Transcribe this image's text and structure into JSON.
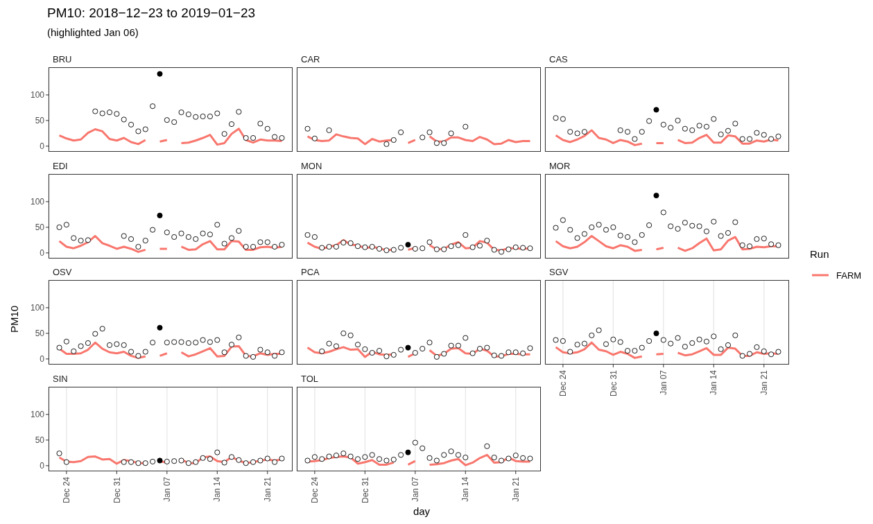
{
  "chart_data": [
    {
      "type": "line",
      "title": "BRU",
      "annotations": [
        "PM10: 2018−12−23 to 2019−01−23",
        "(highlighted Jan 06)"
      ],
      "x": [
        "2018-12-23",
        "2018-12-24",
        "2018-12-25",
        "2018-12-26",
        "2018-12-27",
        "2018-12-28",
        "2018-12-29",
        "2018-12-30",
        "2018-12-31",
        "2019-01-01",
        "2019-01-02",
        "2019-01-03",
        "2019-01-04",
        "2019-01-05",
        "2019-01-06",
        "2019-01-07",
        "2019-01-08",
        "2019-01-09",
        "2019-01-10",
        "2019-01-11",
        "2019-01-12",
        "2019-01-13",
        "2019-01-14",
        "2019-01-15",
        "2019-01-16",
        "2019-01-17",
        "2019-01-18",
        "2019-01-19",
        "2019-01-20",
        "2019-01-21",
        "2019-01-22",
        "2019-01-23"
      ],
      "xlim": [
        "2018-12-21T12:00",
        "2019-01-24T12:00"
      ],
      "xticks": [
        "2018-12-24",
        "2018-12-31",
        "2019-01-07",
        "2019-01-14",
        "2019-01-21"
      ],
      "ylim": [
        -11,
        154
      ],
      "yticks": [
        0,
        50,
        100
      ],
      "grid": "x",
      "tick_labels": "y",
      "series": [
        {
          "type": "line",
          "color": "#f8766d",
          "values": [
            21,
            15,
            11,
            13,
            26,
            33,
            29,
            14,
            11,
            16,
            8,
            4,
            12,
            null,
            9,
            12,
            null,
            6,
            7,
            11,
            16,
            22,
            3,
            6,
            24,
            34,
            12,
            7,
            13,
            11,
            11,
            10
          ]
        },
        {
          "type": "scatter",
          "color": "#000000",
          "marker": "circle",
          "colors": [
            null,
            null,
            null,
            null,
            null,
            "#ffffff",
            "#ffffff",
            "#ffffff",
            "#ffffff",
            "#ffffff",
            "#ffffff",
            "#ffffff",
            "#ffffff",
            "#ffffff",
            "#000000",
            "#ffffff",
            "#ffffff",
            "#ffffff",
            "#ffffff",
            "#ffffff",
            "#ffffff",
            "#ffffff",
            "#ffffff",
            "#ffffff",
            "#ffffff",
            "#ffffff",
            "#ffffff",
            "#ffffff",
            "#ffffff",
            "#ffffff",
            "#ffffff",
            "#ffffff"
          ],
          "values": [
            null,
            null,
            null,
            null,
            null,
            68,
            64,
            66,
            63,
            52,
            42,
            29,
            33,
            78,
            141,
            51,
            47,
            66,
            62,
            57,
            58,
            58,
            64,
            24,
            43,
            67,
            16,
            16,
            44,
            34,
            18,
            16
          ]
        }
      ]
    },
    {
      "type": "line",
      "title": "CAR",
      "x": [
        "2018-12-23",
        "2018-12-24",
        "2018-12-25",
        "2018-12-26",
        "2018-12-27",
        "2018-12-28",
        "2018-12-29",
        "2018-12-30",
        "2018-12-31",
        "2019-01-01",
        "2019-01-02",
        "2019-01-03",
        "2019-01-04",
        "2019-01-05",
        "2019-01-06",
        "2019-01-07",
        "2019-01-08",
        "2019-01-09",
        "2019-01-10",
        "2019-01-11",
        "2019-01-12",
        "2019-01-13",
        "2019-01-14",
        "2019-01-15",
        "2019-01-16",
        "2019-01-17",
        "2019-01-18",
        "2019-01-19",
        "2019-01-20",
        "2019-01-21",
        "2019-01-22",
        "2019-01-23"
      ],
      "xlim": [
        "2018-12-21T12:00",
        "2019-01-24T12:00"
      ],
      "xticks": [
        "2018-12-24",
        "2018-12-31",
        "2019-01-07",
        "2019-01-14",
        "2019-01-21"
      ],
      "ylim": [
        -11,
        154
      ],
      "yticks": [
        0,
        50,
        100
      ],
      "grid": "x",
      "tick_labels": false,
      "series": [
        {
          "type": "line",
          "color": "#f8766d",
          "values": [
            19,
            12,
            10,
            11,
            23,
            19,
            16,
            15,
            4,
            14,
            9,
            11,
            12,
            null,
            6,
            12,
            null,
            19,
            9,
            9,
            17,
            17,
            12,
            10,
            18,
            13,
            4,
            5,
            12,
            8,
            10,
            10
          ]
        },
        {
          "type": "scatter",
          "color": "#000000",
          "marker": "circle",
          "colors": [
            "#ffffff",
            "#ffffff",
            null,
            "#ffffff",
            null,
            null,
            null,
            null,
            null,
            null,
            null,
            "#ffffff",
            "#ffffff",
            "#ffffff",
            null,
            null,
            "#ffffff",
            "#ffffff",
            "#ffffff",
            "#ffffff",
            "#ffffff",
            null,
            "#ffffff",
            null,
            null,
            null,
            null,
            null,
            null,
            null,
            null,
            null
          ],
          "values": [
            34,
            15,
            null,
            31,
            null,
            null,
            null,
            null,
            null,
            null,
            null,
            4,
            12,
            27,
            null,
            null,
            17,
            27,
            6,
            6,
            25,
            null,
            38,
            null,
            null,
            null,
            null,
            null,
            null,
            null,
            null,
            null
          ]
        }
      ]
    },
    {
      "type": "line",
      "title": "CAS",
      "x": [
        "2018-12-23",
        "2018-12-24",
        "2018-12-25",
        "2018-12-26",
        "2018-12-27",
        "2018-12-28",
        "2018-12-29",
        "2018-12-30",
        "2018-12-31",
        "2019-01-01",
        "2019-01-02",
        "2019-01-03",
        "2019-01-04",
        "2019-01-05",
        "2019-01-06",
        "2019-01-07",
        "2019-01-08",
        "2019-01-09",
        "2019-01-10",
        "2019-01-11",
        "2019-01-12",
        "2019-01-13",
        "2019-01-14",
        "2019-01-15",
        "2019-01-16",
        "2019-01-17",
        "2019-01-18",
        "2019-01-19",
        "2019-01-20",
        "2019-01-21",
        "2019-01-22",
        "2019-01-23"
      ],
      "xlim": [
        "2018-12-21T12:00",
        "2019-01-24T12:00"
      ],
      "xticks": [
        "2018-12-24",
        "2018-12-31",
        "2019-01-07",
        "2019-01-14",
        "2019-01-21"
      ],
      "ylim": [
        -11,
        154
      ],
      "yticks": [
        0,
        50,
        100
      ],
      "grid": "x",
      "tick_labels": false,
      "series": [
        {
          "type": "line",
          "color": "#f8766d",
          "values": [
            21,
            12,
            8,
            13,
            20,
            31,
            16,
            13,
            6,
            12,
            9,
            2,
            5,
            null,
            6,
            6,
            null,
            12,
            6,
            7,
            16,
            22,
            7,
            7,
            21,
            19,
            5,
            5,
            11,
            9,
            13,
            11
          ]
        },
        {
          "type": "scatter",
          "color": "#000000",
          "marker": "circle",
          "colors": [
            "#ffffff",
            "#ffffff",
            "#ffffff",
            "#ffffff",
            "#ffffff",
            null,
            null,
            null,
            null,
            "#ffffff",
            "#ffffff",
            "#ffffff",
            "#ffffff",
            "#ffffff",
            "#000000",
            "#ffffff",
            "#ffffff",
            "#ffffff",
            "#ffffff",
            "#ffffff",
            "#ffffff",
            "#ffffff",
            "#ffffff",
            "#ffffff",
            "#ffffff",
            "#ffffff",
            "#ffffff",
            "#ffffff",
            "#ffffff",
            "#ffffff",
            "#ffffff",
            "#ffffff"
          ],
          "values": [
            55,
            53,
            28,
            25,
            28,
            null,
            null,
            null,
            null,
            31,
            28,
            14,
            28,
            49,
            71,
            42,
            36,
            50,
            34,
            31,
            40,
            38,
            53,
            23,
            30,
            44,
            14,
            14,
            26,
            22,
            14,
            19
          ]
        }
      ]
    },
    {
      "type": "line",
      "title": "EDI",
      "x": [
        "2018-12-23",
        "2018-12-24",
        "2018-12-25",
        "2018-12-26",
        "2018-12-27",
        "2018-12-28",
        "2018-12-29",
        "2018-12-30",
        "2018-12-31",
        "2019-01-01",
        "2019-01-02",
        "2019-01-03",
        "2019-01-04",
        "2019-01-05",
        "2019-01-06",
        "2019-01-07",
        "2019-01-08",
        "2019-01-09",
        "2019-01-10",
        "2019-01-11",
        "2019-01-12",
        "2019-01-13",
        "2019-01-14",
        "2019-01-15",
        "2019-01-16",
        "2019-01-17",
        "2019-01-18",
        "2019-01-19",
        "2019-01-20",
        "2019-01-21",
        "2019-01-22",
        "2019-01-23"
      ],
      "xlim": [
        "2018-12-21T12:00",
        "2019-01-24T12:00"
      ],
      "xticks": [
        "2018-12-24",
        "2018-12-31",
        "2019-01-07",
        "2019-01-14",
        "2019-01-21"
      ],
      "ylim": [
        -11,
        154
      ],
      "yticks": [
        0,
        50,
        100
      ],
      "grid": "x",
      "tick_labels": "y",
      "series": [
        {
          "type": "line",
          "color": "#f8766d",
          "values": [
            23,
            12,
            9,
            14,
            21,
            33,
            19,
            14,
            8,
            12,
            8,
            2,
            6,
            null,
            8,
            8,
            null,
            12,
            6,
            7,
            17,
            23,
            7,
            7,
            23,
            22,
            6,
            6,
            11,
            12,
            10,
            12
          ]
        },
        {
          "type": "scatter",
          "color": "#000000",
          "marker": "circle",
          "colors": [
            "#ffffff",
            "#ffffff",
            "#ffffff",
            "#ffffff",
            "#ffffff",
            null,
            null,
            null,
            null,
            "#ffffff",
            "#ffffff",
            "#ffffff",
            "#ffffff",
            "#ffffff",
            "#000000",
            "#ffffff",
            "#ffffff",
            "#ffffff",
            "#ffffff",
            "#ffffff",
            "#ffffff",
            "#ffffff",
            "#ffffff",
            "#ffffff",
            "#ffffff",
            "#ffffff",
            "#ffffff",
            "#ffffff",
            "#ffffff",
            "#ffffff",
            "#ffffff",
            "#ffffff"
          ],
          "values": [
            50,
            55,
            29,
            24,
            25,
            null,
            null,
            null,
            null,
            33,
            27,
            12,
            24,
            45,
            73,
            40,
            31,
            38,
            31,
            27,
            38,
            36,
            55,
            18,
            29,
            43,
            12,
            12,
            21,
            21,
            12,
            16
          ]
        }
      ]
    },
    {
      "type": "line",
      "title": "MON",
      "x": [
        "2018-12-23",
        "2018-12-24",
        "2018-12-25",
        "2018-12-26",
        "2018-12-27",
        "2018-12-28",
        "2018-12-29",
        "2018-12-30",
        "2018-12-31",
        "2019-01-01",
        "2019-01-02",
        "2019-01-03",
        "2019-01-04",
        "2019-01-05",
        "2019-01-06",
        "2019-01-07",
        "2019-01-08",
        "2019-01-09",
        "2019-01-10",
        "2019-01-11",
        "2019-01-12",
        "2019-01-13",
        "2019-01-14",
        "2019-01-15",
        "2019-01-16",
        "2019-01-17",
        "2019-01-18",
        "2019-01-19",
        "2019-01-20",
        "2019-01-21",
        "2019-01-22",
        "2019-01-23"
      ],
      "xlim": [
        "2018-12-21T12:00",
        "2019-01-24T12:00"
      ],
      "xticks": [
        "2018-12-24",
        "2018-12-31",
        "2019-01-07",
        "2019-01-14",
        "2019-01-21"
      ],
      "ylim": [
        -11,
        154
      ],
      "yticks": [
        0,
        50,
        100
      ],
      "grid": "x",
      "tick_labels": false,
      "series": [
        {
          "type": "line",
          "color": "#f8766d",
          "values": [
            20,
            12,
            8,
            12,
            15,
            25,
            16,
            15,
            9,
            12,
            9,
            5,
            7,
            null,
            6,
            10,
            null,
            15,
            7,
            8,
            16,
            21,
            9,
            10,
            23,
            20,
            6,
            5,
            9,
            9,
            8,
            9
          ]
        },
        {
          "type": "scatter",
          "color": "#000000",
          "marker": "circle",
          "colors": [
            "#ffffff",
            "#ffffff",
            "#ffffff",
            "#ffffff",
            "#ffffff",
            "#ffffff",
            "#ffffff",
            "#ffffff",
            "#ffffff",
            "#ffffff",
            "#ffffff",
            "#ffffff",
            "#ffffff",
            "#ffffff",
            "#000000",
            "#ffffff",
            "#ffffff",
            "#ffffff",
            "#ffffff",
            "#ffffff",
            "#ffffff",
            "#ffffff",
            "#ffffff",
            "#ffffff",
            "#ffffff",
            "#ffffff",
            "#ffffff",
            "#ffffff",
            "#ffffff",
            "#ffffff",
            "#ffffff",
            "#ffffff"
          ],
          "values": [
            35,
            31,
            10,
            12,
            12,
            20,
            19,
            13,
            11,
            12,
            8,
            5,
            6,
            10,
            16,
            8,
            9,
            21,
            7,
            7,
            13,
            15,
            35,
            11,
            14,
            24,
            6,
            2,
            7,
            11,
            10,
            9
          ]
        }
      ]
    },
    {
      "type": "line",
      "title": "MOR",
      "legend": "right",
      "legend_title": "Run",
      "x": [
        "2018-12-23",
        "2018-12-24",
        "2018-12-25",
        "2018-12-26",
        "2018-12-27",
        "2018-12-28",
        "2018-12-29",
        "2018-12-30",
        "2018-12-31",
        "2019-01-01",
        "2019-01-02",
        "2019-01-03",
        "2019-01-04",
        "2019-01-05",
        "2019-01-06",
        "2019-01-07",
        "2019-01-08",
        "2019-01-09",
        "2019-01-10",
        "2019-01-11",
        "2019-01-12",
        "2019-01-13",
        "2019-01-14",
        "2019-01-15",
        "2019-01-16",
        "2019-01-17",
        "2019-01-18",
        "2019-01-19",
        "2019-01-20",
        "2019-01-21",
        "2019-01-22",
        "2019-01-23"
      ],
      "xlim": [
        "2018-12-21T12:00",
        "2019-01-24T12:00"
      ],
      "xticks": [
        "2018-12-24",
        "2018-12-31",
        "2019-01-07",
        "2019-01-14",
        "2019-01-21"
      ],
      "ylim": [
        -11,
        154
      ],
      "yticks": [
        0,
        50,
        100
      ],
      "grid": "x",
      "tick_labels": false,
      "series": [
        {
          "type": "line",
          "name": "FARM",
          "color": "#f8766d",
          "values": [
            23,
            13,
            9,
            12,
            21,
            33,
            23,
            13,
            9,
            15,
            12,
            4,
            6,
            null,
            7,
            10,
            null,
            10,
            4,
            9,
            19,
            28,
            5,
            7,
            24,
            31,
            7,
            8,
            12,
            11,
            13,
            13
          ]
        },
        {
          "type": "scatter",
          "color": "#000000",
          "marker": "circle",
          "colors": [
            "#ffffff",
            "#ffffff",
            "#ffffff",
            "#ffffff",
            "#ffffff",
            "#ffffff",
            "#ffffff",
            "#ffffff",
            "#ffffff",
            "#ffffff",
            "#ffffff",
            "#ffffff",
            "#ffffff",
            "#ffffff",
            "#000000",
            "#ffffff",
            "#ffffff",
            "#ffffff",
            "#ffffff",
            "#ffffff",
            "#ffffff",
            "#ffffff",
            "#ffffff",
            "#ffffff",
            "#ffffff",
            "#ffffff",
            "#ffffff",
            "#ffffff",
            "#ffffff",
            "#ffffff",
            "#ffffff",
            "#ffffff"
          ],
          "values": [
            49,
            64,
            45,
            29,
            37,
            50,
            55,
            45,
            50,
            34,
            31,
            21,
            35,
            54,
            112,
            79,
            52,
            47,
            59,
            53,
            52,
            42,
            61,
            33,
            39,
            60,
            15,
            13,
            27,
            28,
            17,
            15
          ]
        }
      ]
    },
    {
      "type": "line",
      "title": "OSV",
      "ylabel": "PM10",
      "x": [
        "2018-12-23",
        "2018-12-24",
        "2018-12-25",
        "2018-12-26",
        "2018-12-27",
        "2018-12-28",
        "2018-12-29",
        "2018-12-30",
        "2018-12-31",
        "2019-01-01",
        "2019-01-02",
        "2019-01-03",
        "2019-01-04",
        "2019-01-05",
        "2019-01-06",
        "2019-01-07",
        "2019-01-08",
        "2019-01-09",
        "2019-01-10",
        "2019-01-11",
        "2019-01-12",
        "2019-01-13",
        "2019-01-14",
        "2019-01-15",
        "2019-01-16",
        "2019-01-17",
        "2019-01-18",
        "2019-01-19",
        "2019-01-20",
        "2019-01-21",
        "2019-01-22",
        "2019-01-23"
      ],
      "xlim": [
        "2018-12-21T12:00",
        "2019-01-24T12:00"
      ],
      "xticks": [
        "2018-12-24",
        "2018-12-31",
        "2019-01-07",
        "2019-01-14",
        "2019-01-21"
      ],
      "ylim": [
        -11,
        154
      ],
      "yticks": [
        0,
        50,
        100
      ],
      "grid": "x",
      "tick_labels": "y",
      "series": [
        {
          "type": "line",
          "color": "#f8766d",
          "values": [
            20,
            10,
            10,
            11,
            18,
            32,
            20,
            13,
            11,
            14,
            6,
            2,
            5,
            null,
            6,
            11,
            null,
            13,
            5,
            9,
            15,
            21,
            5,
            6,
            24,
            25,
            6,
            5,
            11,
            8,
            10,
            10
          ]
        },
        {
          "type": "scatter",
          "color": "#000000",
          "marker": "circle",
          "colors": [
            "#ffffff",
            "#ffffff",
            "#ffffff",
            "#ffffff",
            "#ffffff",
            "#ffffff",
            "#ffffff",
            "#ffffff",
            "#ffffff",
            "#ffffff",
            "#ffffff",
            "#ffffff",
            "#ffffff",
            "#ffffff",
            "#000000",
            "#ffffff",
            "#ffffff",
            "#ffffff",
            "#ffffff",
            "#ffffff",
            "#ffffff",
            "#ffffff",
            "#ffffff",
            "#ffffff",
            "#ffffff",
            "#ffffff",
            "#ffffff",
            "#ffffff",
            "#ffffff",
            "#ffffff",
            "#ffffff",
            "#ffffff"
          ],
          "values": [
            22,
            34,
            15,
            25,
            31,
            49,
            59,
            27,
            29,
            27,
            14,
            6,
            14,
            32,
            61,
            32,
            33,
            33,
            31,
            32,
            37,
            33,
            37,
            13,
            28,
            42,
            6,
            4,
            18,
            13,
            6,
            13
          ]
        }
      ]
    },
    {
      "type": "line",
      "title": "PCA",
      "x": [
        "2018-12-23",
        "2018-12-24",
        "2018-12-25",
        "2018-12-26",
        "2018-12-27",
        "2018-12-28",
        "2018-12-29",
        "2018-12-30",
        "2018-12-31",
        "2019-01-01",
        "2019-01-02",
        "2019-01-03",
        "2019-01-04",
        "2019-01-05",
        "2019-01-06",
        "2019-01-07",
        "2019-01-08",
        "2019-01-09",
        "2019-01-10",
        "2019-01-11",
        "2019-01-12",
        "2019-01-13",
        "2019-01-14",
        "2019-01-15",
        "2019-01-16",
        "2019-01-17",
        "2019-01-18",
        "2019-01-19",
        "2019-01-20",
        "2019-01-21",
        "2019-01-22",
        "2019-01-23"
      ],
      "xlim": [
        "2018-12-21T12:00",
        "2019-01-24T12:00"
      ],
      "xticks": [
        "2018-12-24",
        "2018-12-31",
        "2019-01-07",
        "2019-01-14",
        "2019-01-21"
      ],
      "ylim": [
        -11,
        154
      ],
      "yticks": [
        0,
        50,
        100
      ],
      "grid": "x",
      "tick_labels": false,
      "series": [
        {
          "type": "line",
          "color": "#f8766d",
          "values": [
            22,
            13,
            11,
            14,
            19,
            23,
            18,
            19,
            4,
            14,
            9,
            8,
            9,
            null,
            4,
            11,
            null,
            17,
            6,
            10,
            20,
            21,
            11,
            10,
            20,
            16,
            5,
            5,
            10,
            10,
            9,
            9
          ]
        },
        {
          "type": "scatter",
          "color": "#000000",
          "marker": "circle",
          "colors": [
            null,
            null,
            "#ffffff",
            "#ffffff",
            "#ffffff",
            "#ffffff",
            "#ffffff",
            "#ffffff",
            "#ffffff",
            "#ffffff",
            "#ffffff",
            "#ffffff",
            "#ffffff",
            "#ffffff",
            "#000000",
            "#ffffff",
            "#ffffff",
            "#ffffff",
            "#ffffff",
            "#ffffff",
            "#ffffff",
            "#ffffff",
            "#ffffff",
            "#ffffff",
            "#ffffff",
            "#ffffff",
            "#ffffff",
            "#ffffff",
            "#ffffff",
            "#ffffff",
            "#ffffff",
            "#ffffff"
          ],
          "values": [
            null,
            null,
            15,
            30,
            25,
            50,
            46,
            28,
            19,
            12,
            16,
            5,
            8,
            18,
            22,
            12,
            20,
            32,
            4,
            10,
            26,
            26,
            41,
            11,
            20,
            22,
            7,
            6,
            13,
            13,
            11,
            21
          ]
        }
      ]
    },
    {
      "type": "line",
      "title": "SGV",
      "x": [
        "2018-12-23",
        "2018-12-24",
        "2018-12-25",
        "2018-12-26",
        "2018-12-27",
        "2018-12-28",
        "2018-12-29",
        "2018-12-30",
        "2018-12-31",
        "2019-01-01",
        "2019-01-02",
        "2019-01-03",
        "2019-01-04",
        "2019-01-05",
        "2019-01-06",
        "2019-01-07",
        "2019-01-08",
        "2019-01-09",
        "2019-01-10",
        "2019-01-11",
        "2019-01-12",
        "2019-01-13",
        "2019-01-14",
        "2019-01-15",
        "2019-01-16",
        "2019-01-17",
        "2019-01-18",
        "2019-01-19",
        "2019-01-20",
        "2019-01-21",
        "2019-01-22",
        "2019-01-23"
      ],
      "xlim": [
        "2018-12-21T12:00",
        "2019-01-24T12:00"
      ],
      "xticks": [
        {
          "value": "2018-12-24",
          "label": "Dec 24"
        },
        {
          "value": "2018-12-31",
          "label": "Dec 31"
        },
        {
          "value": "2019-01-07",
          "label": "Jan 07"
        },
        {
          "value": "2019-01-14",
          "label": "Jan 14"
        },
        {
          "value": "2019-01-21",
          "label": "Jan 21"
        }
      ],
      "ylim": [
        -11,
        154
      ],
      "yticks": [
        0,
        50,
        100
      ],
      "grid": "x",
      "tick_labels": "x",
      "series": [
        {
          "type": "line",
          "color": "#f8766d",
          "values": [
            23,
            13,
            11,
            13,
            19,
            32,
            18,
            15,
            8,
            14,
            10,
            2,
            5,
            null,
            9,
            10,
            null,
            12,
            7,
            9,
            15,
            21,
            8,
            8,
            22,
            20,
            6,
            6,
            13,
            10,
            11,
            10
          ]
        },
        {
          "type": "scatter",
          "color": "#000000",
          "marker": "circle",
          "colors": [
            "#ffffff",
            "#ffffff",
            "#ffffff",
            "#ffffff",
            "#ffffff",
            "#ffffff",
            "#ffffff",
            "#ffffff",
            "#ffffff",
            "#ffffff",
            "#ffffff",
            "#ffffff",
            "#ffffff",
            "#ffffff",
            "#000000",
            "#ffffff",
            "#ffffff",
            "#ffffff",
            "#ffffff",
            "#ffffff",
            "#ffffff",
            "#ffffff",
            "#ffffff",
            "#ffffff",
            "#ffffff",
            "#ffffff",
            "#ffffff",
            "#ffffff",
            "#ffffff",
            "#ffffff",
            "#ffffff",
            "#ffffff"
          ],
          "values": [
            37,
            35,
            14,
            28,
            30,
            46,
            56,
            29,
            38,
            33,
            16,
            16,
            22,
            35,
            50,
            37,
            30,
            41,
            24,
            31,
            38,
            34,
            44,
            19,
            27,
            46,
            6,
            10,
            23,
            15,
            9,
            14
          ]
        }
      ]
    },
    {
      "type": "line",
      "title": "SIN",
      "x": [
        "2018-12-23",
        "2018-12-24",
        "2018-12-25",
        "2018-12-26",
        "2018-12-27",
        "2018-12-28",
        "2018-12-29",
        "2018-12-30",
        "2018-12-31",
        "2019-01-01",
        "2019-01-02",
        "2019-01-03",
        "2019-01-04",
        "2019-01-05",
        "2019-01-06",
        "2019-01-07",
        "2019-01-08",
        "2019-01-09",
        "2019-01-10",
        "2019-01-11",
        "2019-01-12",
        "2019-01-13",
        "2019-01-14",
        "2019-01-15",
        "2019-01-16",
        "2019-01-17",
        "2019-01-18",
        "2019-01-19",
        "2019-01-20",
        "2019-01-21",
        "2019-01-22",
        "2019-01-23"
      ],
      "xlim": [
        "2018-12-21T12:00",
        "2019-01-24T12:00"
      ],
      "xticks": [
        {
          "value": "2018-12-24",
          "label": "Dec 24"
        },
        {
          "value": "2018-12-31",
          "label": "Dec 31"
        },
        {
          "value": "2019-01-07",
          "label": "Jan 07"
        },
        {
          "value": "2019-01-14",
          "label": "Jan 14"
        },
        {
          "value": "2019-01-21",
          "label": "Jan 21"
        }
      ],
      "ylim": [
        -11,
        154
      ],
      "yticks": [
        0,
        50,
        100
      ],
      "grid": "x",
      "series": [
        {
          "type": "line",
          "color": "#f8766d",
          "values": [
            16,
            8,
            7,
            9,
            17,
            18,
            12,
            13,
            4,
            11,
            9,
            5,
            5,
            null,
            9,
            6,
            null,
            12,
            5,
            5,
            16,
            18,
            9,
            7,
            17,
            10,
            5,
            7,
            10,
            12,
            10,
            12
          ]
        },
        {
          "type": "scatter",
          "color": "#000000",
          "marker": "circle",
          "colors": [
            "#ffffff",
            "#ffffff",
            null,
            null,
            null,
            null,
            null,
            null,
            null,
            "#ffffff",
            "#ffffff",
            "#ffffff",
            "#ffffff",
            "#ffffff",
            "#000000",
            "#ffffff",
            "#ffffff",
            "#ffffff",
            "#ffffff",
            "#ffffff",
            "#ffffff",
            "#ffffff",
            "#ffffff",
            "#ffffff",
            "#ffffff",
            "#ffffff",
            "#ffffff",
            "#ffffff",
            "#ffffff",
            "#ffffff",
            "#ffffff",
            "#ffffff"
          ],
          "values": [
            24,
            7,
            null,
            null,
            null,
            null,
            null,
            null,
            null,
            7,
            7,
            5,
            5,
            8,
            10,
            8,
            9,
            10,
            5,
            7,
            15,
            13,
            26,
            6,
            17,
            11,
            5,
            7,
            10,
            14,
            7,
            14
          ]
        }
      ]
    },
    {
      "type": "line",
      "title": "TOL",
      "xlabel": "day",
      "x": [
        "2018-12-23",
        "2018-12-24",
        "2018-12-25",
        "2018-12-26",
        "2018-12-27",
        "2018-12-28",
        "2018-12-29",
        "2018-12-30",
        "2018-12-31",
        "2019-01-01",
        "2019-01-02",
        "2019-01-03",
        "2019-01-04",
        "2019-01-05",
        "2019-01-06",
        "2019-01-07",
        "2019-01-08",
        "2019-01-09",
        "2019-01-10",
        "2019-01-11",
        "2019-01-12",
        "2019-01-13",
        "2019-01-14",
        "2019-01-15",
        "2019-01-16",
        "2019-01-17",
        "2019-01-18",
        "2019-01-19",
        "2019-01-20",
        "2019-01-21",
        "2019-01-22",
        "2019-01-23"
      ],
      "xlim": [
        "2018-12-21T12:00",
        "2019-01-24T12:00"
      ],
      "xticks": [
        {
          "value": "2018-12-24",
          "label": "Dec 24"
        },
        {
          "value": "2018-12-31",
          "label": "Dec 31"
        },
        {
          "value": "2019-01-07",
          "label": "Jan 07"
        },
        {
          "value": "2019-01-14",
          "label": "Jan 14"
        },
        {
          "value": "2019-01-21",
          "label": "Jan 21"
        }
      ],
      "ylim": [
        -11,
        154
      ],
      "yticks": [
        0,
        50,
        100
      ],
      "grid": "x",
      "tick_labels": "x",
      "series": [
        {
          "type": "line",
          "color": "#f8766d",
          "values": [
            8,
            9,
            11,
            15,
            17,
            18,
            16,
            4,
            7,
            11,
            2,
            2,
            6,
            null,
            2,
            9,
            null,
            2,
            3,
            5,
            10,
            13,
            1,
            6,
            15,
            21,
            6,
            7,
            16,
            9,
            8,
            8
          ]
        },
        {
          "type": "scatter",
          "color": "#000000",
          "marker": "circle",
          "colors": [
            "#ffffff",
            "#ffffff",
            "#ffffff",
            "#ffffff",
            "#ffffff",
            "#ffffff",
            "#ffffff",
            "#ffffff",
            "#ffffff",
            "#ffffff",
            "#ffffff",
            "#ffffff",
            "#ffffff",
            "#ffffff",
            "#000000",
            "#ffffff",
            "#ffffff",
            "#ffffff",
            "#ffffff",
            "#ffffff",
            "#ffffff",
            "#ffffff",
            "#ffffff",
            null,
            null,
            "#ffffff",
            "#ffffff",
            "#ffffff",
            "#ffffff",
            "#ffffff",
            "#ffffff",
            "#ffffff"
          ],
          "values": [
            10,
            17,
            13,
            18,
            20,
            24,
            18,
            13,
            17,
            21,
            13,
            10,
            12,
            21,
            26,
            45,
            34,
            15,
            10,
            21,
            28,
            21,
            16,
            null,
            null,
            38,
            16,
            10,
            14,
            20,
            15,
            14
          ]
        }
      ]
    }
  ]
}
